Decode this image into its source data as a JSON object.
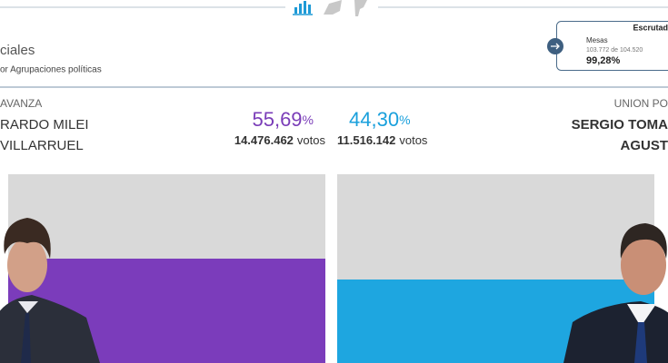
{
  "header": {
    "title": "ciales",
    "subtitle": "or Agrupaciones políticas"
  },
  "scrutiny": {
    "title": "Escrutad",
    "label": "Mesas",
    "detail": "103.772 de 104.520",
    "percent": "99,28%"
  },
  "candidates": [
    {
      "party": "AVANZA",
      "name1": "RARDO MILEI",
      "name2": "VILLARRUEL",
      "percent": "55,69",
      "percent_sign": "%",
      "votes": "14.476.462",
      "votes_unit": "votos"
    },
    {
      "party": "UNION PO",
      "name1": "SERGIO TOMA",
      "name2": "AGUST",
      "percent": "44,30",
      "percent_sign": "%",
      "votes": "11.516.142",
      "votes_unit": "votos"
    }
  ]
}
